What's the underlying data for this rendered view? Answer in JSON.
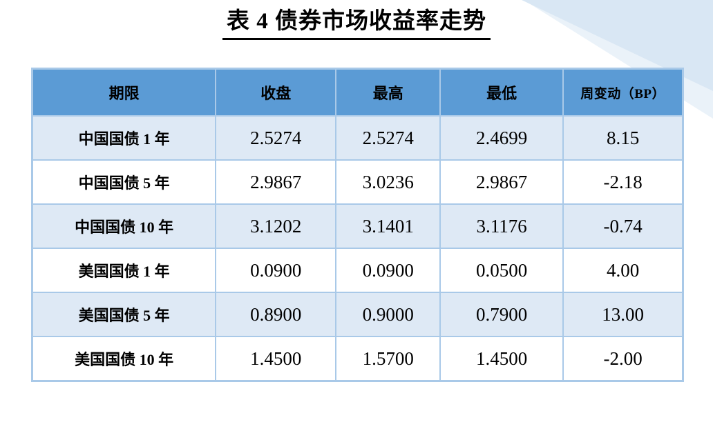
{
  "title": {
    "text": "表 4 债券市场收益率走势"
  },
  "table": {
    "headers": [
      "期限",
      "收盘",
      "最高",
      "最低",
      "周变动（BP）"
    ],
    "rows": [
      {
        "term": "中国国债 1 年",
        "close": "2.5274",
        "high": "2.5274",
        "low": "2.4699",
        "weekly_change_bp": "8.15"
      },
      {
        "term": "中国国债 5 年",
        "close": "2.9867",
        "high": "3.0236",
        "low": "2.9867",
        "weekly_change_bp": "-2.18"
      },
      {
        "term": "中国国债 10 年",
        "close": "3.1202",
        "high": "3.1401",
        "low": "3.1176",
        "weekly_change_bp": "-0.74"
      },
      {
        "term": "美国国债 1 年",
        "close": "0.0900",
        "high": "0.0900",
        "low": "0.0500",
        "weekly_change_bp": "4.00"
      },
      {
        "term": "美国国债 5 年",
        "close": "0.8900",
        "high": "0.9000",
        "low": "0.7900",
        "weekly_change_bp": "13.00"
      },
      {
        "term": "美国国债 10 年",
        "close": "1.4500",
        "high": "1.5700",
        "low": "1.4500",
        "weekly_change_bp": "-2.00"
      }
    ]
  },
  "colors": {
    "header_bg": "#5B9BD5",
    "stripe_row_bg": "#DEE9F5",
    "table_border": "#A9C9E8",
    "corner_wedge": "#D9E7F4",
    "corner_wedge_light": "#EAF2F9"
  }
}
